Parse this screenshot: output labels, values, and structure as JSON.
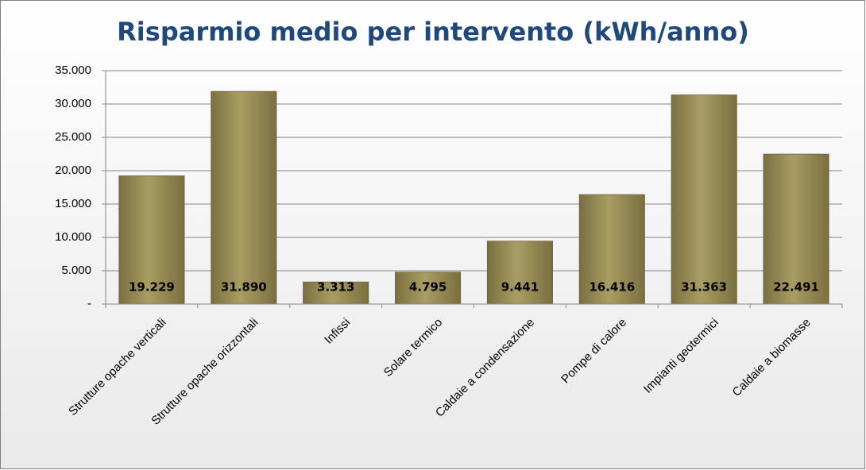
{
  "chart_data": {
    "type": "bar",
    "title": "Risparmio medio per intervento (kWh/anno)",
    "categories": [
      "Strutture opache verticali",
      "Strutture opache orizzontali",
      "Infissi",
      "Solare termico",
      "Caldaie a condensazione",
      "Pompe di calore",
      "Impianti geotermici",
      "Caldaie a biomasse"
    ],
    "values": [
      19229,
      31890,
      3313,
      4795,
      9441,
      16416,
      31363,
      22491
    ],
    "value_labels": [
      "19.229",
      "31.890",
      "3.313",
      "4.795",
      "9.441",
      "16.416",
      "31.363",
      "22.491"
    ],
    "color": "#9b8f58",
    "ylim": [
      0,
      35000
    ],
    "yticks": [
      {
        "value": 0,
        "label": "-"
      },
      {
        "value": 5000,
        "label": "5.000"
      },
      {
        "value": 10000,
        "label": "10.000"
      },
      {
        "value": 15000,
        "label": "15.000"
      },
      {
        "value": 20000,
        "label": "20.000"
      },
      {
        "value": 25000,
        "label": "25.000"
      },
      {
        "value": 30000,
        "label": "30.000"
      },
      {
        "value": 35000,
        "label": "35.000"
      }
    ],
    "grid": true
  }
}
